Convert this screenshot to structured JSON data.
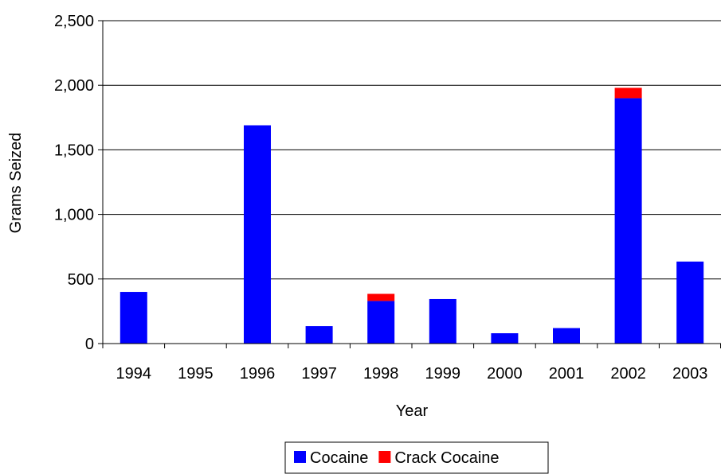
{
  "chart_data": {
    "type": "bar",
    "stacked": true,
    "title": "",
    "xlabel": "Year",
    "ylabel": "Grams Seized",
    "categories": [
      "1994",
      "1995",
      "1996",
      "1997",
      "1998",
      "1999",
      "2000",
      "2001",
      "2002",
      "2003"
    ],
    "series": [
      {
        "name": "Cocaine",
        "color": "#0000ff",
        "values": [
          400,
          0,
          1690,
          135,
          330,
          345,
          80,
          120,
          1900,
          635
        ]
      },
      {
        "name": "Crack Cocaine",
        "color": "#ff0000",
        "values": [
          0,
          0,
          0,
          0,
          55,
          0,
          0,
          0,
          80,
          0
        ]
      }
    ],
    "ylim": [
      0,
      2500
    ],
    "yticks": [
      0,
      500,
      1000,
      1500,
      2000,
      2500
    ],
    "ytick_labels": [
      "0",
      "500",
      "1,000",
      "1,500",
      "2,000",
      "2,500"
    ],
    "grid": "horizontal",
    "legend_position": "bottom-center"
  }
}
